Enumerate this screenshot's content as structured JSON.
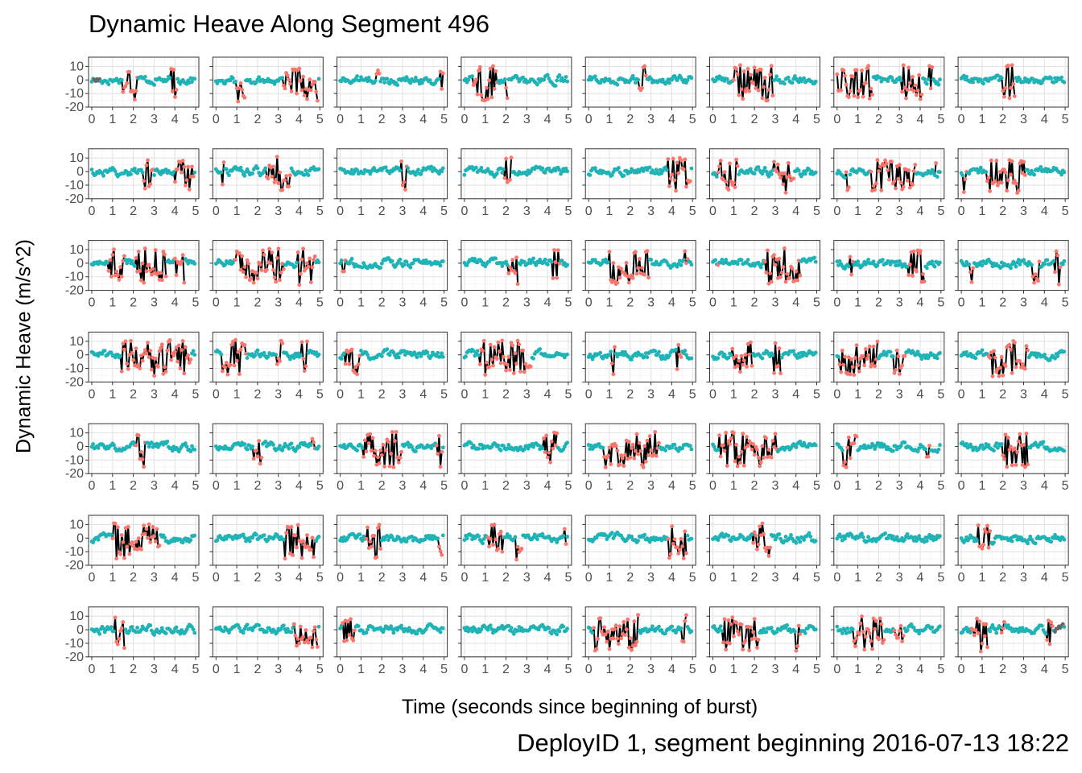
{
  "chart_data": {
    "type": "scatter",
    "title": "Dynamic Heave Along Segment 496",
    "xlabel": "Time (seconds since beginning of burst)",
    "ylabel": "Dynamic Heave (m/s^2)",
    "caption": "DeployID 1, segment beginning 2016-07-13 18:22",
    "layout": {
      "rows": 7,
      "cols": 8
    },
    "xlim": [
      0,
      5
    ],
    "ylim": [
      -20,
      15
    ],
    "xticks": [
      0,
      1,
      2,
      3,
      4,
      5
    ],
    "xtick_labels": [
      "0",
      "1",
      "2",
      "3",
      "4",
      "5"
    ],
    "yticks": [
      -20,
      -10,
      0,
      10
    ],
    "ytick_labels": [
      "-20",
      "-10",
      "0",
      "10"
    ],
    "grid": true,
    "colors": {
      "base": "#1fb3b6",
      "event": "#f8766d",
      "other": "#666666",
      "stem": "#000000"
    },
    "panels": [
      {
        "events": [
          [
            1.5,
            2.2
          ],
          [
            3.8,
            4.1
          ]
        ],
        "other": [
          0.1,
          0.4
        ]
      },
      {
        "events": [
          [
            1.0,
            1.4
          ],
          [
            3.2,
            4.9
          ]
        ]
      },
      {
        "events": [
          [
            1.7,
            1.9
          ],
          [
            4.8,
            5.0
          ]
        ]
      },
      {
        "events": [
          [
            0.4,
            1.6
          ],
          [
            2.0,
            2.1
          ]
        ]
      },
      {
        "events": [
          [
            2.4,
            2.8
          ]
        ]
      },
      {
        "events": [
          [
            1.0,
            2.9
          ]
        ]
      },
      {
        "events": [
          [
            0.0,
            1.7
          ],
          [
            3.1,
            4.1
          ],
          [
            4.4,
            4.6
          ]
        ]
      },
      {
        "events": [
          [
            2.0,
            2.6
          ]
        ]
      },
      {
        "events": [
          [
            2.5,
            3.0
          ],
          [
            4.0,
            4.9
          ]
        ]
      },
      {
        "events": [
          [
            0.3,
            0.4
          ],
          [
            2.4,
            3.6
          ]
        ]
      },
      {
        "events": [
          [
            2.9,
            3.2
          ]
        ]
      },
      {
        "events": [
          [
            1.9,
            2.3
          ]
        ]
      },
      {
        "events": [
          [
            3.8,
            4.9
          ]
        ]
      },
      {
        "events": [
          [
            0.2,
            1.2
          ],
          [
            2.9,
            3.9
          ]
        ]
      },
      {
        "events": [
          [
            0.4,
            0.6
          ],
          [
            1.6,
            3.8
          ],
          [
            4.7,
            4.8
          ]
        ]
      },
      {
        "events": [
          [
            0.1,
            0.3
          ],
          [
            1.2,
            3.1
          ]
        ]
      },
      {
        "events": [
          [
            0.8,
            1.6
          ],
          [
            2.1,
            3.6
          ],
          [
            4.0,
            4.5
          ]
        ]
      },
      {
        "events": [
          [
            0.9,
            3.3
          ],
          [
            3.9,
            4.8
          ]
        ]
      },
      {
        "events": [
          [
            0.1,
            0.3
          ]
        ]
      },
      {
        "events": [
          [
            2.1,
            2.6
          ],
          [
            4.2,
            4.6
          ]
        ]
      },
      {
        "events": [
          [
            1.0,
            2.9
          ],
          [
            4.6,
            4.8
          ]
        ]
      },
      {
        "events": [
          [
            0.2,
            0.3
          ],
          [
            2.5,
            4.2
          ]
        ]
      },
      {
        "events": [
          [
            0.6,
            0.8
          ],
          [
            3.4,
            4.2
          ]
        ]
      },
      {
        "events": [
          [
            0.4,
            0.6
          ],
          [
            3.4,
            3.8
          ],
          [
            4.5,
            4.8
          ]
        ]
      },
      {
        "events": [
          [
            1.4,
            4.8
          ]
        ]
      },
      {
        "events": [
          [
            0.3,
            1.5
          ],
          [
            2.9,
            3.2
          ],
          [
            4.1,
            4.4
          ]
        ]
      },
      {
        "events": [
          [
            0.2,
            1.0
          ]
        ]
      },
      {
        "events": [
          [
            0.7,
            3.2
          ]
        ]
      },
      {
        "events": [
          [
            1.1,
            1.3
          ],
          [
            4.2,
            4.5
          ]
        ]
      },
      {
        "events": [
          [
            0.9,
            1.9
          ],
          [
            2.9,
            3.3
          ]
        ]
      },
      {
        "events": [
          [
            0.1,
            2.0
          ],
          [
            2.7,
            3.3
          ]
        ]
      },
      {
        "events": [
          [
            1.3,
            3.2
          ]
        ]
      },
      {
        "events": [
          [
            2.1,
            2.6
          ]
        ]
      },
      {
        "events": [
          [
            1.8,
            2.2
          ],
          [
            4.6,
            4.8
          ]
        ]
      },
      {
        "events": [
          [
            1.1,
            3.0
          ],
          [
            4.6,
            4.9
          ]
        ]
      },
      {
        "events": [
          [
            3.8,
            4.5
          ]
        ]
      },
      {
        "events": [
          [
            0.7,
            3.4
          ]
        ]
      },
      {
        "events": [
          [
            0.3,
            3.1
          ]
        ]
      },
      {
        "events": [
          [
            0.3,
            1.0
          ],
          [
            4.3,
            4.5
          ]
        ]
      },
      {
        "events": [
          [
            2.0,
            3.2
          ]
        ]
      },
      {
        "events": [
          [
            1.0,
            3.3
          ]
        ]
      },
      {
        "events": [
          [
            3.3,
            4.8
          ]
        ]
      },
      {
        "events": [
          [
            1.2,
            2.0
          ],
          [
            4.7,
            4.9
          ]
        ]
      },
      {
        "events": [
          [
            1.1,
            1.9
          ],
          [
            2.5,
            2.8
          ],
          [
            4.8,
            4.9
          ]
        ]
      },
      {
        "events": [
          [
            3.8,
            4.7
          ]
        ]
      },
      {
        "events": [
          [
            1.9,
            2.8
          ]
        ]
      },
      {
        "events": []
      },
      {
        "events": [
          [
            0.8,
            1.4
          ]
        ]
      },
      {
        "events": [
          [
            1.1,
            1.6
          ]
        ]
      },
      {
        "events": [
          [
            3.7,
            4.9
          ]
        ]
      },
      {
        "events": [
          [
            0.1,
            0.7
          ]
        ]
      },
      {
        "events": []
      },
      {
        "events": [
          [
            0.2,
            2.4
          ],
          [
            4.5,
            4.7
          ]
        ]
      },
      {
        "events": [
          [
            0.5,
            2.2
          ],
          [
            4.0,
            4.2
          ]
        ]
      },
      {
        "events": [
          [
            0.8,
            2.3
          ],
          [
            2.7,
            3.2
          ]
        ]
      },
      {
        "events": [
          [
            0.5,
            1.3
          ],
          [
            1.9,
            2.1
          ],
          [
            4.1,
            4.4
          ]
        ],
        "other": [
          4.5,
          4.9
        ]
      }
    ]
  }
}
